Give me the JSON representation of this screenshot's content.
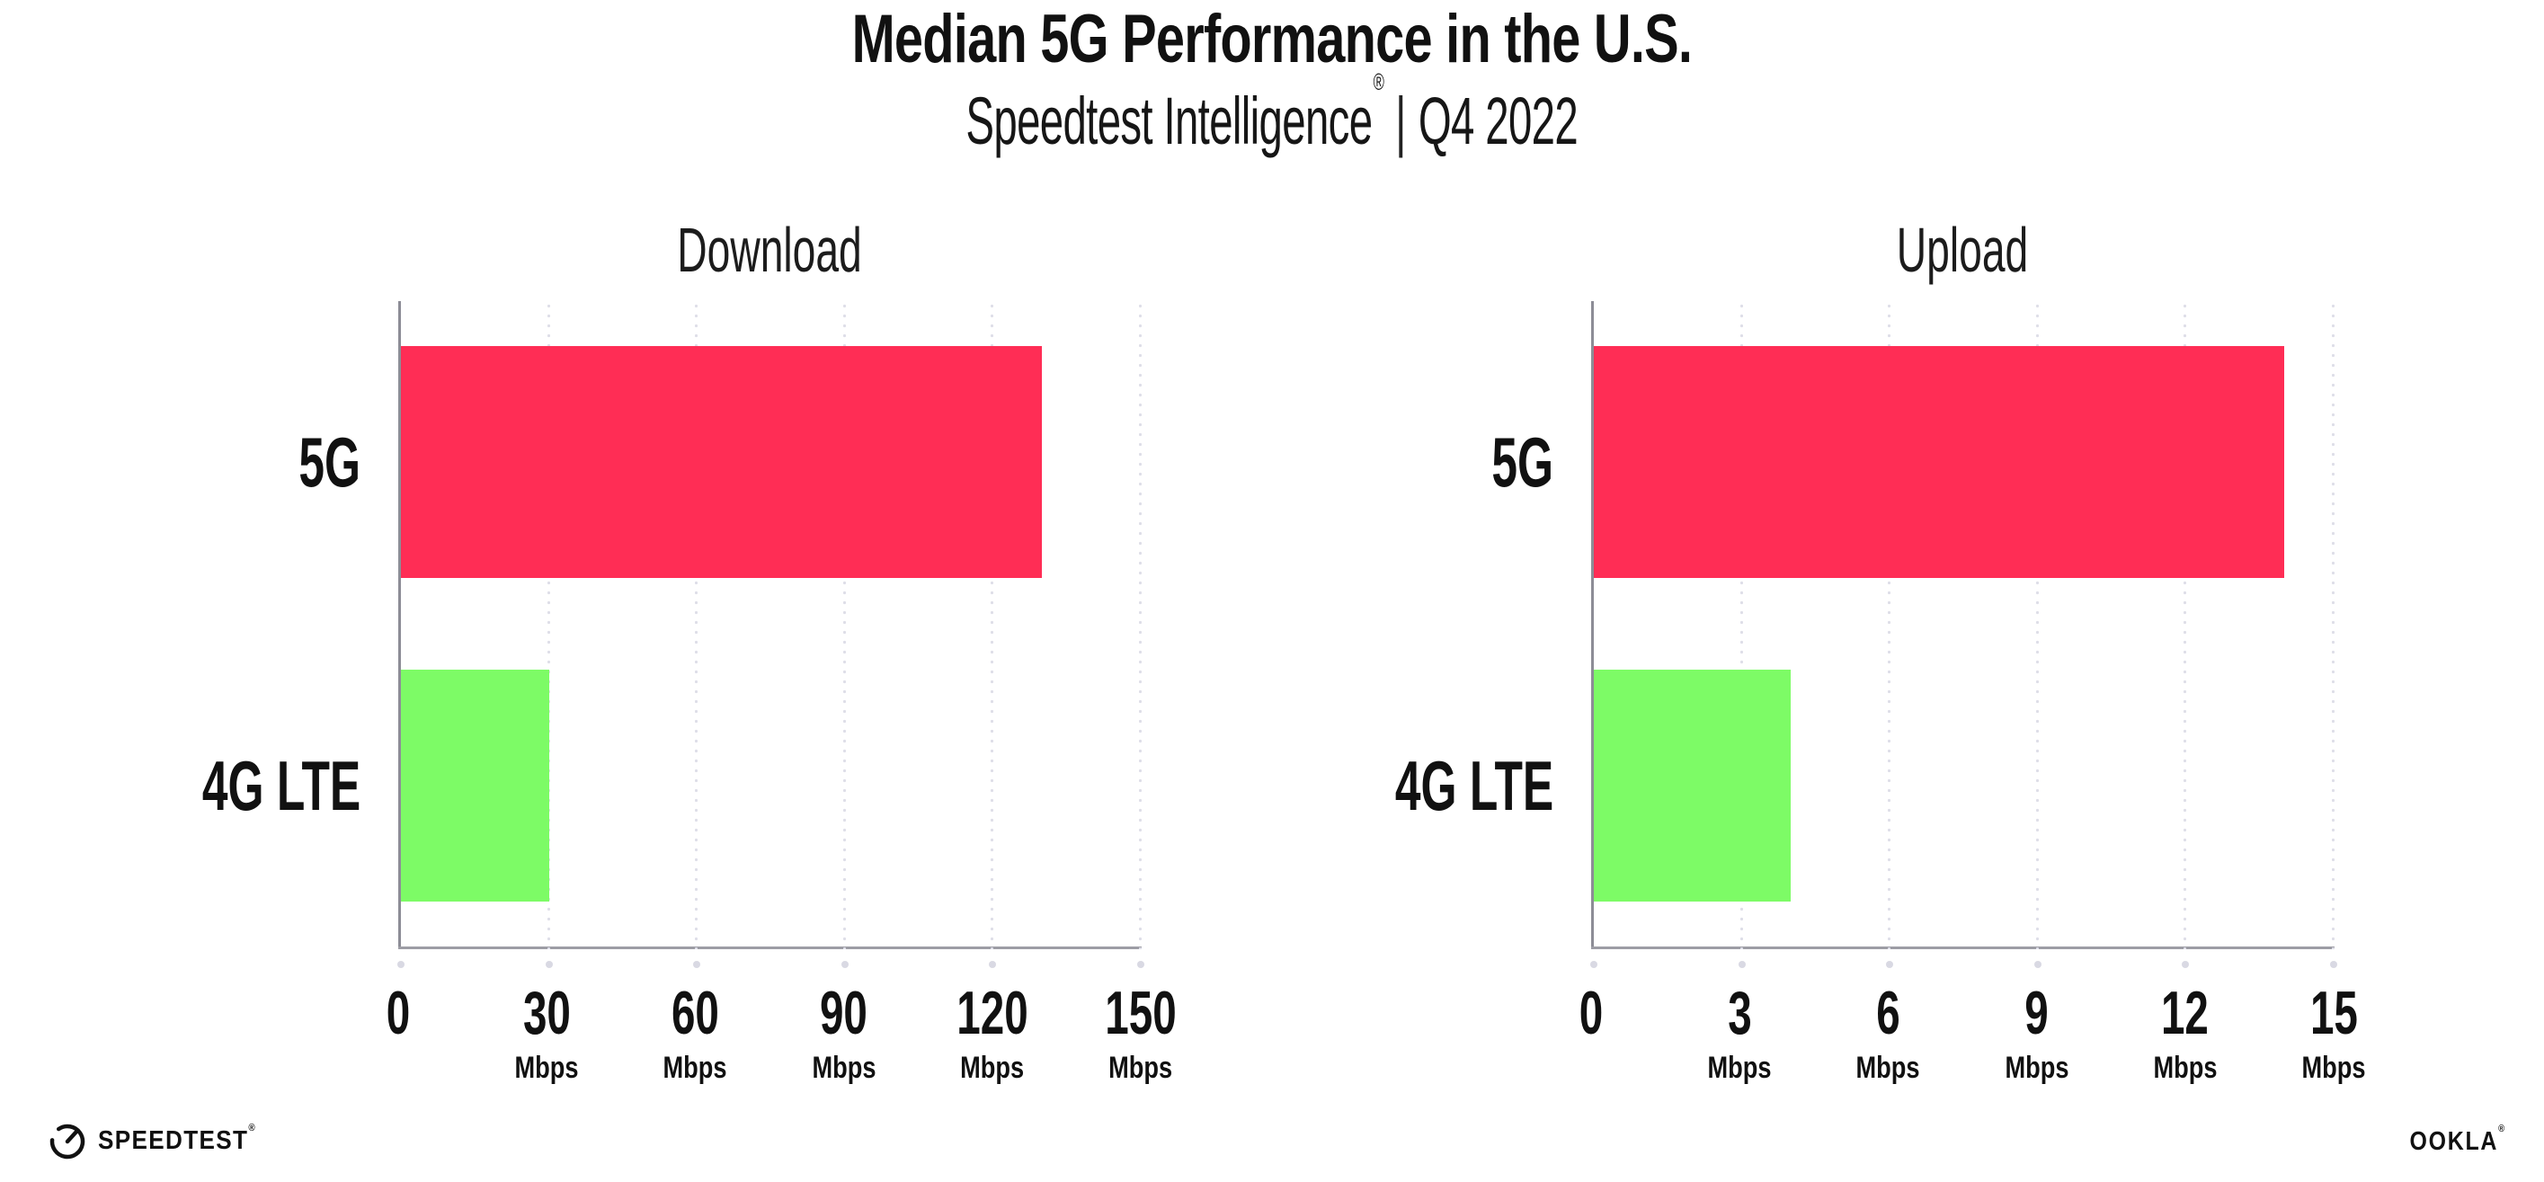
{
  "header": {
    "title": "Median 5G Performance in the U.S.",
    "subtitle_product": "Speedtest Intelligence",
    "subtitle_reg": "®",
    "subtitle_separator": "|",
    "subtitle_period": "Q4 2022"
  },
  "chart_data": [
    {
      "type": "bar",
      "orientation": "horizontal",
      "title": "Download",
      "categories": [
        "5G",
        "4G LTE"
      ],
      "values": [
        130,
        30
      ],
      "unit": "Mbps",
      "xlim": [
        0,
        150
      ],
      "ticks": [
        0,
        30,
        60,
        90,
        120,
        150
      ],
      "bar_colors": [
        "#FF2D55",
        "#7DFB66"
      ],
      "grid": "dotted-vertical-light",
      "legend": "none"
    },
    {
      "type": "bar",
      "orientation": "horizontal",
      "title": "Upload",
      "categories": [
        "5G",
        "4G LTE"
      ],
      "values": [
        14,
        4
      ],
      "unit": "Mbps",
      "xlim": [
        0,
        15
      ],
      "ticks": [
        0,
        3,
        6,
        9,
        12,
        15
      ],
      "bar_colors": [
        "#FF2D55",
        "#7DFB66"
      ],
      "grid": "dotted-vertical-light",
      "legend": "none"
    }
  ],
  "colors": {
    "bar_5g": "#FF2D55",
    "bar_4g_lte": "#7DFB66",
    "axis": "#8d8d96",
    "gridline": "#dedee8",
    "text": "#111111"
  },
  "footer": {
    "speedtest_logo_text": "SPEEDTEST",
    "speedtest_trademark": "®",
    "ookla_logo_text": "OOKLA",
    "ookla_trademark": "®"
  }
}
